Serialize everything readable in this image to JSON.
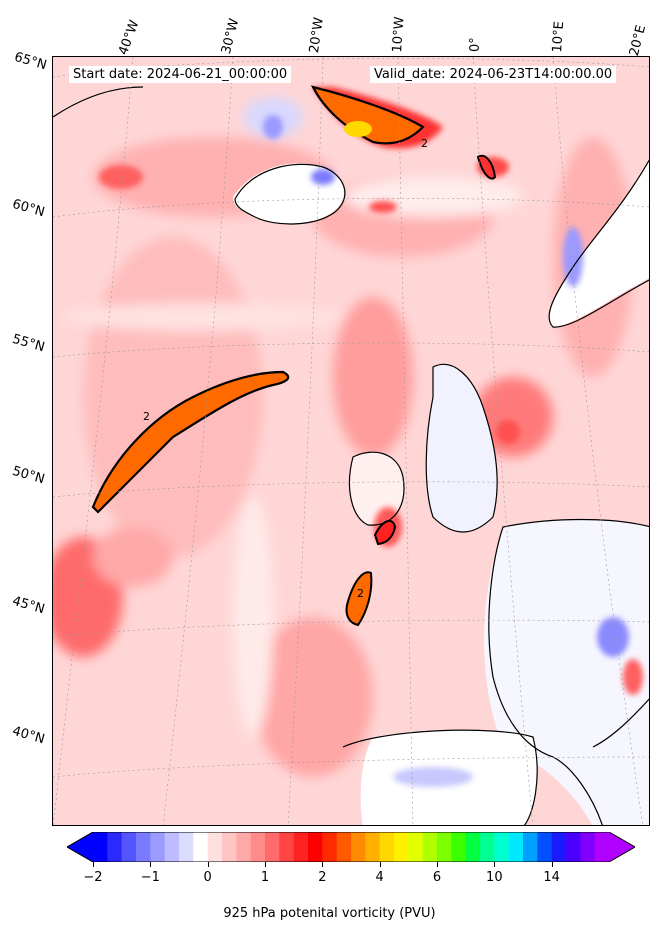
{
  "header": {
    "start_date": "Start date: 2024-06-21_00:00:00",
    "valid_date": "Valid_date: 2024-06-23T14:00:00.00"
  },
  "lat_labels": [
    "65°N",
    "60°N",
    "55°N",
    "50°N",
    "45°N",
    "40°N"
  ],
  "lon_labels": [
    "40°W",
    "30°W",
    "20°W",
    "10°W",
    "0°",
    "10°E",
    "20°E"
  ],
  "colorbar": {
    "ticks": [
      "−2",
      "−1",
      "0",
      "1",
      "2",
      "4",
      "6",
      "10",
      "14"
    ],
    "label": "925 hPa potenital vorticity (PVU)",
    "extend": "both",
    "colors": [
      "#0000ff",
      "#2a2aff",
      "#5555ff",
      "#7a7aff",
      "#9a9aff",
      "#bcbcff",
      "#dcdcff",
      "#ffffff",
      "#ffe0e0",
      "#ffc4c4",
      "#ffa8a8",
      "#ff8a8a",
      "#ff6a6a",
      "#ff4444",
      "#ff2222",
      "#ff0000",
      "#ff2a00",
      "#ff5a00",
      "#ff8c00",
      "#ffb000",
      "#ffd800",
      "#fff000",
      "#e0ff00",
      "#b0ff00",
      "#7cff00",
      "#3cff00",
      "#00ff40",
      "#00ff90",
      "#00ffd0",
      "#00e8ff",
      "#00a0ff",
      "#0050ff",
      "#1a1aff",
      "#4a00ff",
      "#8000ff",
      "#b000ff"
    ]
  },
  "map": {
    "contour_label": "2",
    "projection": "polar stereographic"
  }
}
